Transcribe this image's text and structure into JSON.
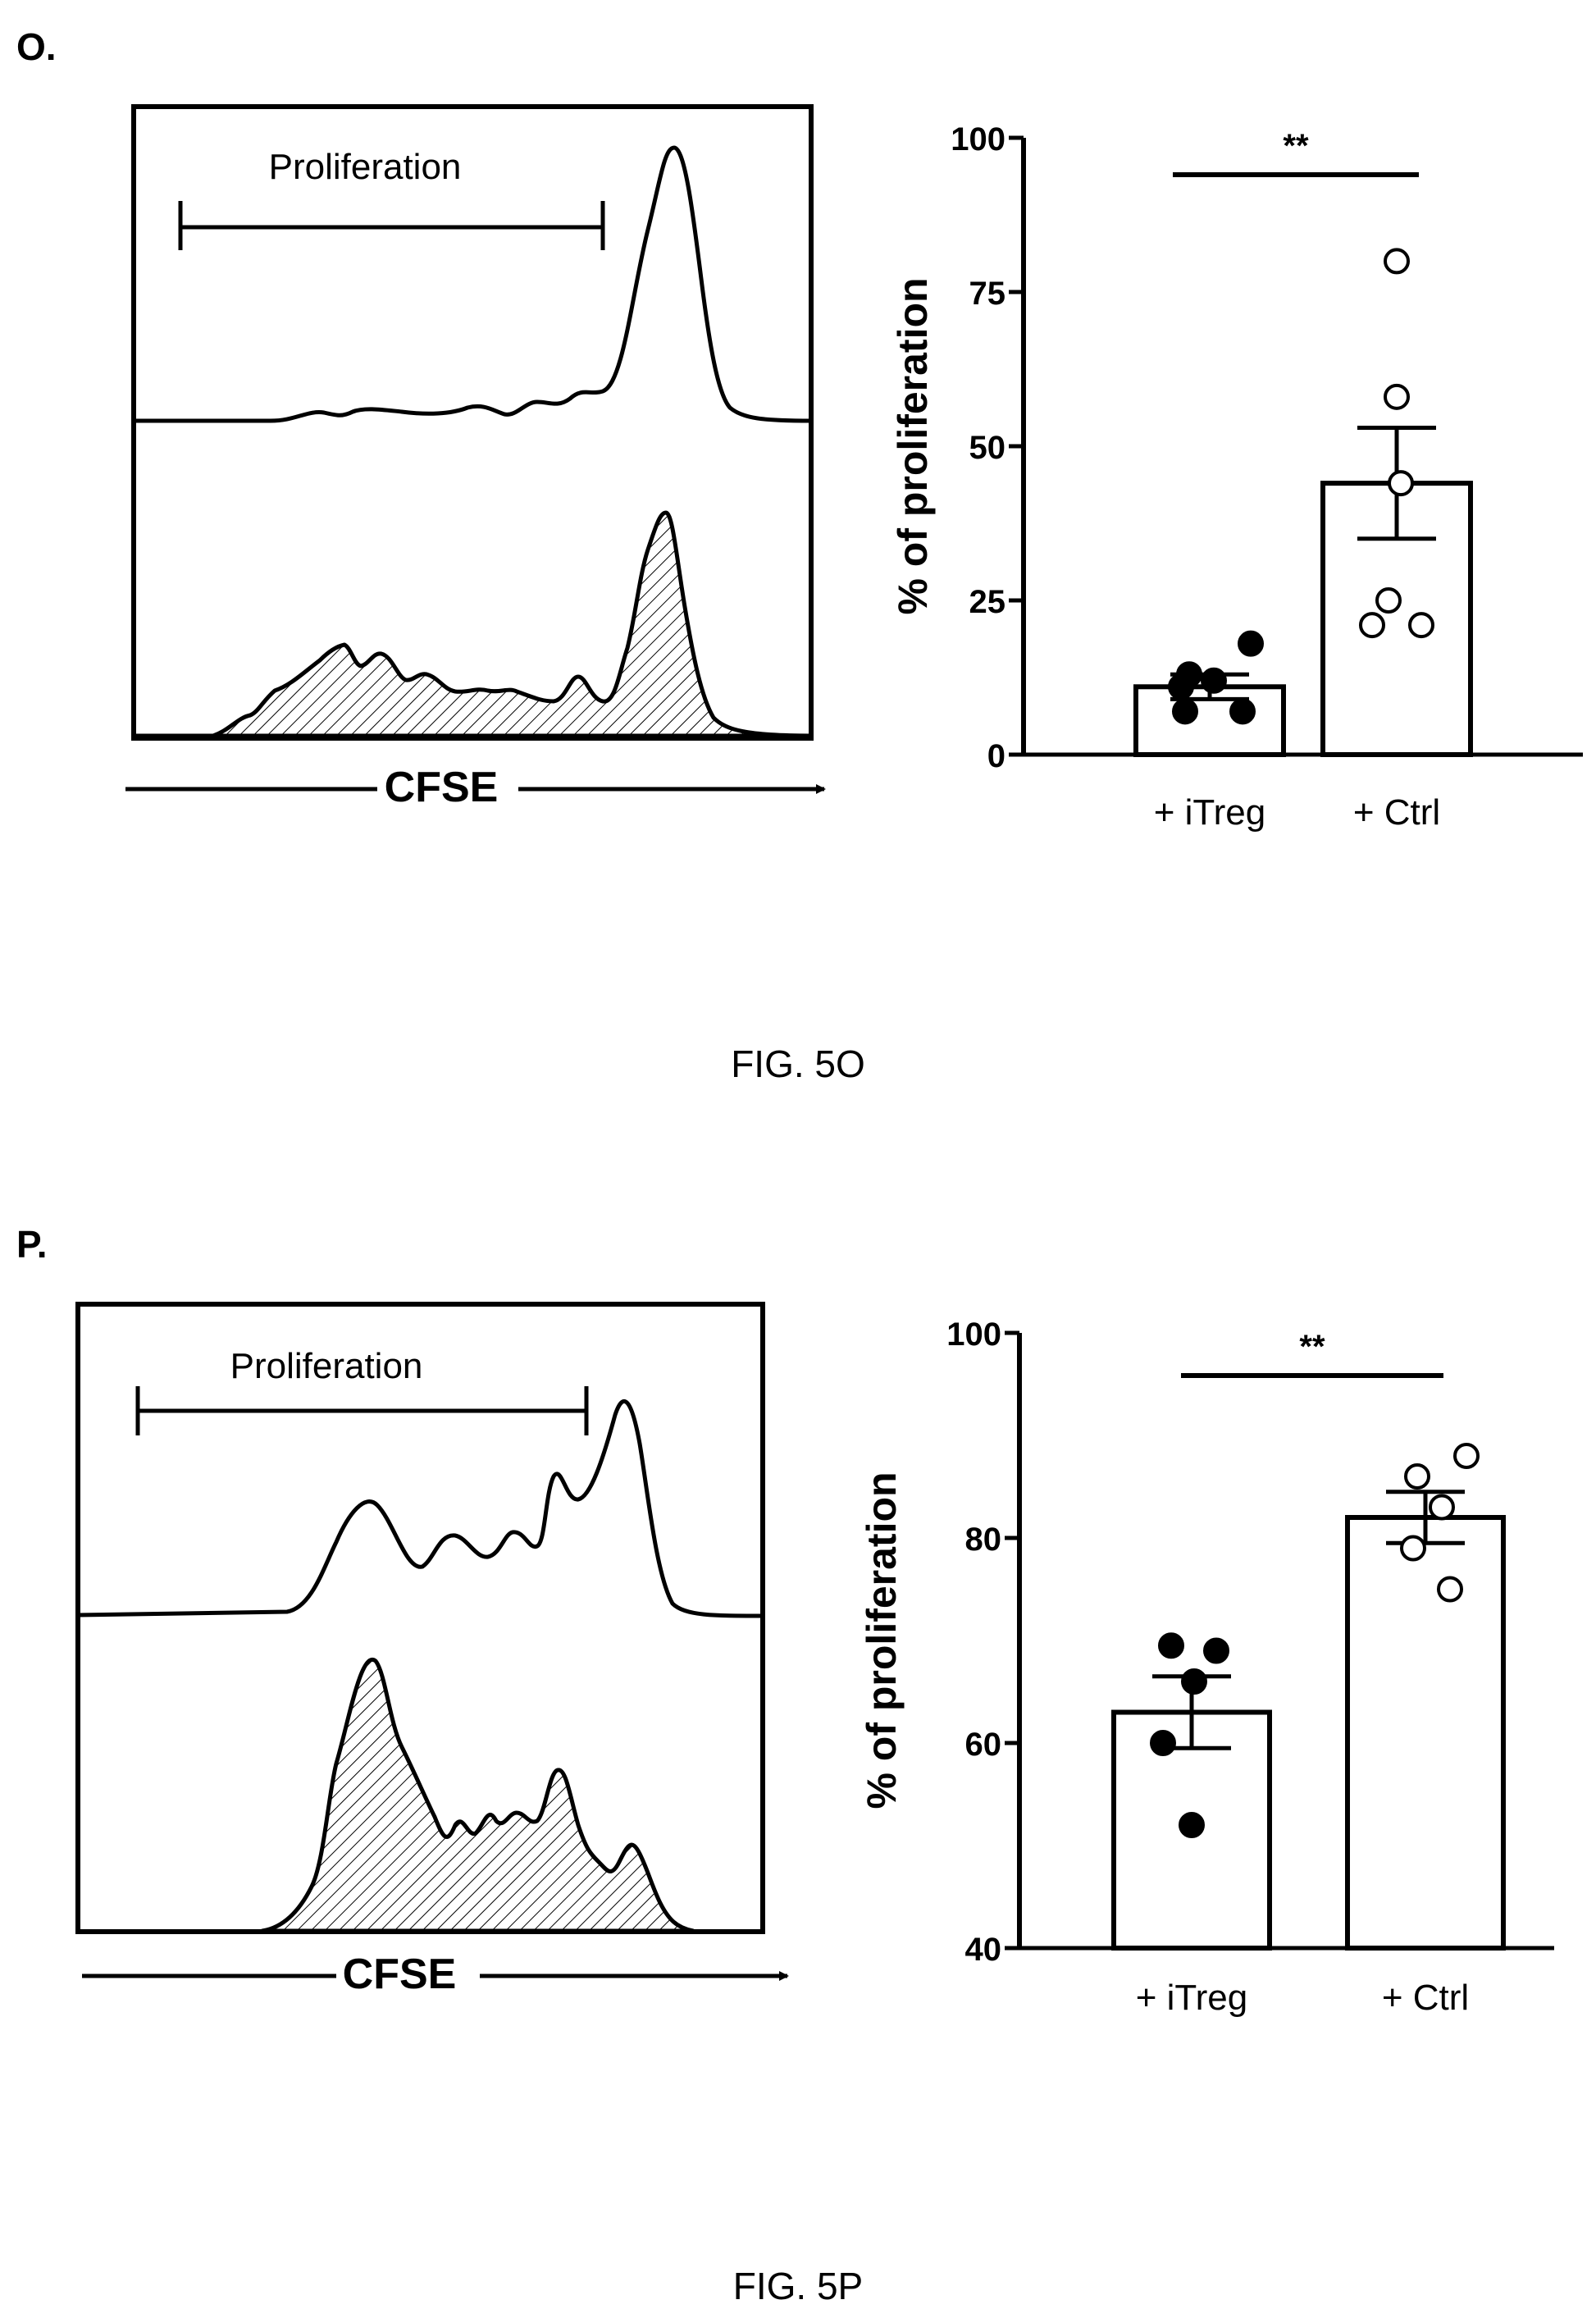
{
  "panels": [
    {
      "letter": "O.",
      "caption": "FIG. 5O",
      "histogram": {
        "gate_label": "Proliferation",
        "axis_label": "CFSE"
      },
      "chart_data": {
        "type": "bar",
        "ylabel": "% of proliferation",
        "ylim": [
          0,
          100
        ],
        "yticks": [
          0,
          25,
          50,
          75,
          100
        ],
        "categories": [
          "+ iTreg",
          "+ Ctrl"
        ],
        "values": [
          11,
          44
        ],
        "sem": [
          2,
          9
        ],
        "points": [
          [
            18,
            13,
            12,
            11,
            7,
            7
          ],
          [
            80,
            58,
            44,
            25,
            21,
            21
          ]
        ],
        "marker_fill": [
          "filled",
          "open"
        ],
        "significance": "**"
      }
    },
    {
      "letter": "P.",
      "caption": "FIG. 5P",
      "histogram": {
        "gate_label": "Proliferation",
        "axis_label": "CFSE"
      },
      "chart_data": {
        "type": "bar",
        "ylabel": "% of proliferation",
        "ylim": [
          40,
          100
        ],
        "yticks": [
          40,
          60,
          80,
          100
        ],
        "categories": [
          "+ iTreg",
          "+ Ctrl"
        ],
        "values": [
          63,
          82
        ],
        "sem": [
          3.5,
          2.5
        ],
        "points": [
          [
            69.5,
            69,
            66,
            60,
            52
          ],
          [
            88,
            86,
            83,
            79,
            75
          ]
        ],
        "marker_fill": [
          "filled",
          "open"
        ],
        "significance": "**"
      }
    }
  ]
}
